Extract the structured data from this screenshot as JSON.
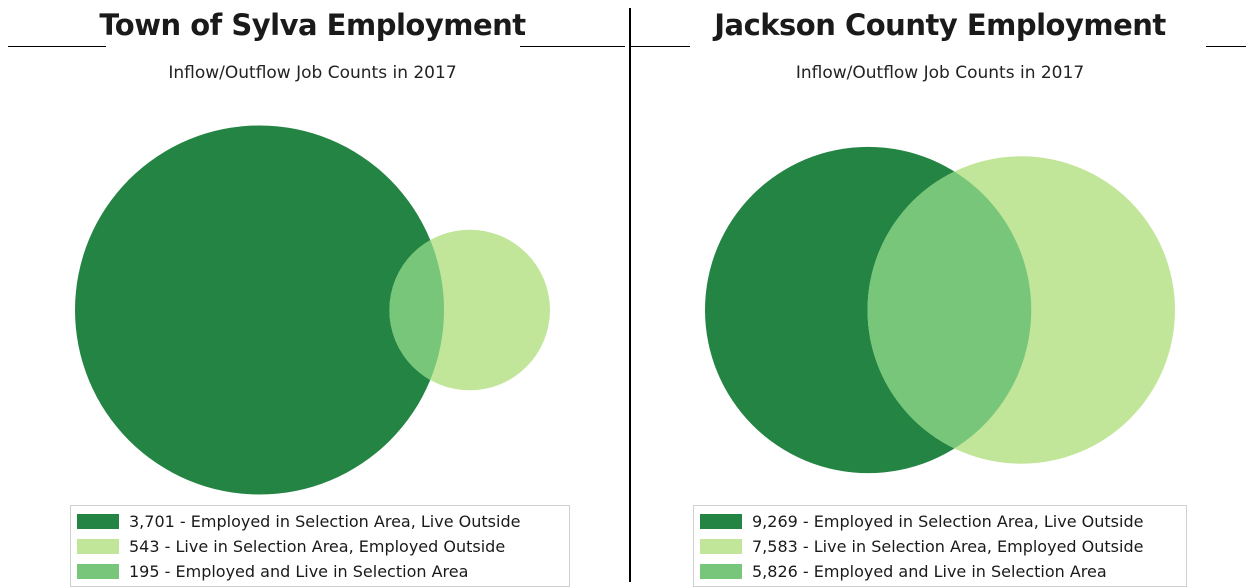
{
  "chart_data": [
    {
      "type": "venn",
      "heading": "Town of Sylva Employment",
      "title": "Inflow/Outflow Job Counts in 2017",
      "sets": [
        {
          "key": "employed",
          "name": "Employed in Selection Area, Live Outside",
          "value": 3701,
          "display": "3,701",
          "color": "#238443"
        },
        {
          "key": "live",
          "name": "Live in Selection Area, Employed Outside",
          "value": 543,
          "display": "543",
          "color": "#c2e699"
        },
        {
          "key": "both",
          "name": "Employed and Live in Selection Area",
          "value": 195,
          "display": "195",
          "color": "#78c679"
        }
      ]
    },
    {
      "type": "venn",
      "heading": "Jackson County Employment",
      "title": "Inflow/Outflow Job Counts in 2017",
      "sets": [
        {
          "key": "employed",
          "name": "Employed in Selection Area, Live Outside",
          "value": 9269,
          "display": "9,269",
          "color": "#238443"
        },
        {
          "key": "live",
          "name": "Live in Selection Area, Employed Outside",
          "value": 7583,
          "display": "7,583",
          "color": "#c2e699"
        },
        {
          "key": "both",
          "name": "Employed and Live in Selection Area",
          "value": 5826,
          "display": "5,826",
          "color": "#78c679"
        }
      ]
    }
  ]
}
